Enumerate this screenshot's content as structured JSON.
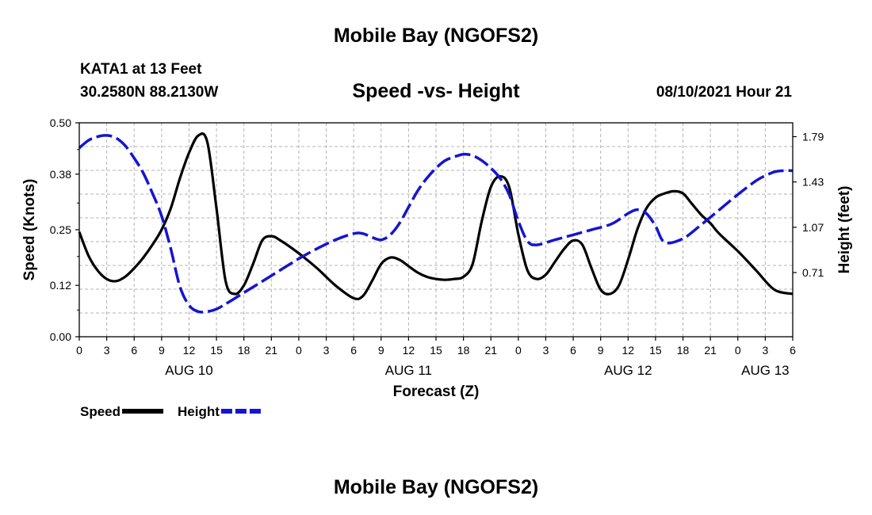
{
  "page_title": "Mobile Bay (NGOFS2)",
  "station": {
    "name_line": "KATA1 at 13 Feet",
    "coords_line": "30.2580N  88.2130W"
  },
  "subtitle": "Speed -vs- Height",
  "timestamp": "08/10/2021 Hour 21",
  "footer_title": "Mobile Bay (NGOFS2)",
  "colors": {
    "speed": "#000000",
    "height": "#1515d0",
    "grid": "#b4b4b4"
  },
  "chart_data": {
    "type": "line",
    "xlabel": "Forecast (Z)",
    "ylabel_left": "Speed (Knots)",
    "ylabel_right": "Height (feet)",
    "xlim": [
      0,
      78
    ],
    "ylim_left": [
      0,
      0.5
    ],
    "ylim_right": [
      0.2,
      1.9
    ],
    "x_ticks": [
      0,
      3,
      6,
      9,
      12,
      15,
      18,
      21,
      24,
      27,
      30,
      33,
      36,
      39,
      42,
      45,
      48,
      51,
      54,
      57,
      60,
      63,
      66,
      69,
      72,
      75,
      78
    ],
    "x_tick_labels": [
      "0",
      "3",
      "6",
      "9",
      "12",
      "15",
      "18",
      "21",
      "0",
      "3",
      "6",
      "9",
      "12",
      "15",
      "18",
      "21",
      "0",
      "3",
      "6",
      "9",
      "12",
      "15",
      "18",
      "21",
      "0",
      "3",
      "6"
    ],
    "date_labels": [
      {
        "x": 12,
        "label": "AUG 10"
      },
      {
        "x": 36,
        "label": "AUG 11"
      },
      {
        "x": 60,
        "label": "AUG 12"
      },
      {
        "x": 75,
        "label": "AUG 13"
      }
    ],
    "y_left_ticks": [
      0.0,
      0.12,
      0.25,
      0.38,
      0.5
    ],
    "y_left_tick_labels": [
      "0.00",
      "0.12",
      "0.25",
      "0.38",
      "0.50"
    ],
    "y_right_ticks": [
      0.71,
      1.07,
      1.43,
      1.79
    ],
    "y_right_tick_labels": [
      "0.71",
      "1.07",
      "1.43",
      "1.79"
    ],
    "grid": true,
    "legend": [
      {
        "name": "Speed",
        "style": "solid"
      },
      {
        "name": "Height",
        "style": "dashed"
      }
    ],
    "series": [
      {
        "name": "Speed",
        "axis": "left",
        "style": "solid",
        "x": [
          0,
          1,
          2,
          3,
          4,
          5,
          6,
          7,
          8,
          9,
          10,
          11,
          12,
          13,
          14,
          15,
          16,
          17,
          18,
          19,
          20,
          21,
          22,
          24,
          26,
          28,
          30,
          31,
          32,
          33,
          34,
          35,
          36,
          37,
          38,
          39,
          40,
          41,
          42,
          43,
          44,
          45,
          46,
          47,
          48,
          49,
          50,
          51,
          52,
          53,
          54,
          55,
          56,
          57,
          58,
          59,
          60,
          61,
          62,
          63,
          64,
          65,
          66,
          67,
          68,
          69,
          70,
          72,
          74,
          76,
          78
        ],
        "y": [
          0.245,
          0.19,
          0.155,
          0.135,
          0.13,
          0.14,
          0.16,
          0.185,
          0.215,
          0.25,
          0.3,
          0.37,
          0.43,
          0.47,
          0.455,
          0.3,
          0.13,
          0.1,
          0.12,
          0.17,
          0.225,
          0.235,
          0.225,
          0.195,
          0.16,
          0.12,
          0.09,
          0.095,
          0.13,
          0.17,
          0.185,
          0.18,
          0.165,
          0.15,
          0.14,
          0.135,
          0.133,
          0.135,
          0.14,
          0.17,
          0.27,
          0.35,
          0.375,
          0.35,
          0.24,
          0.155,
          0.135,
          0.145,
          0.175,
          0.205,
          0.225,
          0.215,
          0.16,
          0.11,
          0.1,
          0.12,
          0.18,
          0.25,
          0.3,
          0.325,
          0.335,
          0.34,
          0.335,
          0.31,
          0.285,
          0.265,
          0.24,
          0.2,
          0.155,
          0.11,
          0.1
        ]
      },
      {
        "name": "Height",
        "axis": "right",
        "style": "dashed",
        "x": [
          0,
          1,
          2,
          3,
          4,
          5,
          6,
          7,
          8,
          9,
          10,
          11,
          12,
          13,
          14,
          15,
          16,
          18,
          20,
          22,
          24,
          26,
          28,
          30,
          31,
          32,
          33,
          34,
          35,
          36,
          37,
          38,
          39,
          40,
          41,
          42,
          43,
          44,
          45,
          46,
          47,
          48,
          49,
          50,
          52,
          54,
          56,
          58,
          59,
          60,
          61,
          62,
          63,
          64,
          66,
          68,
          70,
          72,
          74,
          75,
          76,
          77,
          78
        ],
        "y": [
          1.7,
          1.76,
          1.79,
          1.8,
          1.78,
          1.72,
          1.62,
          1.5,
          1.34,
          1.16,
          0.9,
          0.6,
          0.45,
          0.4,
          0.4,
          0.42,
          0.46,
          0.55,
          0.64,
          0.73,
          0.82,
          0.9,
          0.97,
          1.02,
          1.02,
          0.99,
          0.97,
          1.01,
          1.1,
          1.23,
          1.36,
          1.46,
          1.54,
          1.6,
          1.63,
          1.65,
          1.64,
          1.6,
          1.54,
          1.46,
          1.33,
          1.12,
          0.96,
          0.93,
          0.97,
          1.01,
          1.05,
          1.09,
          1.13,
          1.18,
          1.21,
          1.18,
          1.08,
          0.95,
          0.98,
          1.09,
          1.21,
          1.33,
          1.44,
          1.48,
          1.51,
          1.52,
          1.52
        ]
      }
    ]
  }
}
